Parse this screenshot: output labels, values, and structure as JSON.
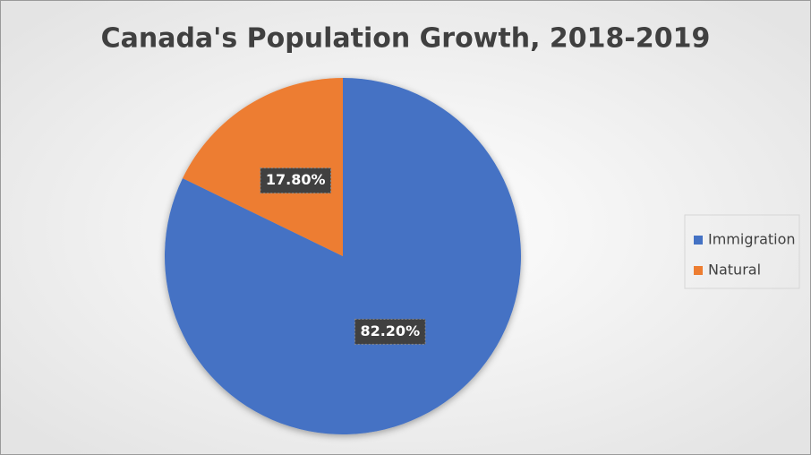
{
  "chart_data": {
    "type": "pie",
    "title": "Canada's Population Growth, 2018-2019",
    "categories": [
      "Immigration",
      "Natural"
    ],
    "values": [
      82.2,
      17.8
    ],
    "value_labels": [
      "82.20%",
      "17.80%"
    ],
    "colors": [
      "#4472c4",
      "#ed7d31"
    ],
    "legend": "right"
  }
}
